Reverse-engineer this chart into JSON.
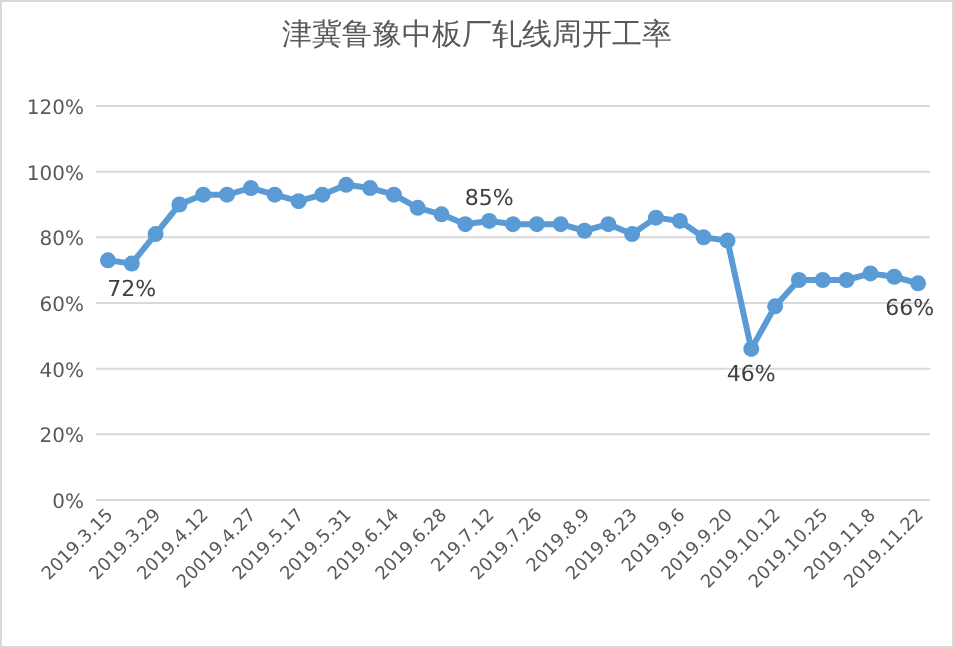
{
  "chart_data": {
    "type": "line",
    "title": "津冀鲁豫中板厂轧线周开工率",
    "categories": [
      "2019.3.15",
      null,
      "2019.3.29",
      null,
      "2019.4.12",
      null,
      "20019.4.27",
      null,
      "2019.5.17",
      null,
      "2019.5.31",
      null,
      "2019.6.14",
      null,
      "2019.6.28",
      null,
      "219.7.12",
      null,
      "2019.7.26",
      null,
      "2019.8.9",
      null,
      "2019.8.23",
      null,
      "2019.9.6",
      null,
      "2019.9.20",
      null,
      "2019.10.12",
      null,
      "2019.10.25",
      null,
      "2019.11.8",
      null,
      "2019.11.22"
    ],
    "series": [
      {
        "color": "#5b9bd5",
        "values": [
          73,
          72,
          81,
          90,
          93,
          93,
          95,
          93,
          91,
          93,
          96,
          95,
          93,
          89,
          87,
          84,
          85,
          84,
          84,
          84,
          82,
          84,
          81,
          86,
          85,
          80,
          79,
          46,
          59,
          67,
          67,
          67,
          69,
          68,
          66
        ],
        "value_labels": [
          null,
          "72%",
          null,
          null,
          null,
          null,
          null,
          null,
          null,
          null,
          null,
          null,
          null,
          null,
          null,
          null,
          "85%",
          null,
          null,
          null,
          null,
          null,
          null,
          null,
          null,
          null,
          null,
          "46%",
          null,
          null,
          null,
          null,
          null,
          null,
          "66%"
        ]
      }
    ],
    "ylim": [
      0,
      120
    ],
    "yticks": [
      {
        "value": 0,
        "label": "0%"
      },
      {
        "value": 20,
        "label": "20%"
      },
      {
        "value": 40,
        "label": "40%"
      },
      {
        "value": 60,
        "label": "60%"
      },
      {
        "value": 80,
        "label": "80%"
      },
      {
        "value": 100,
        "label": "100%"
      },
      {
        "value": 120,
        "label": "120%"
      }
    ],
    "grid": "y",
    "marker": "circle"
  }
}
